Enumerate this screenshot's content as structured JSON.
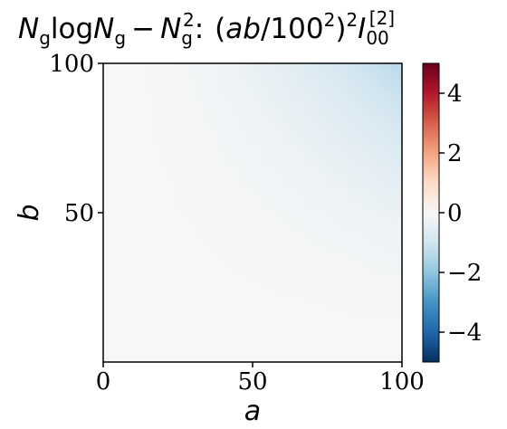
{
  "chart_data": {
    "type": "heatmap",
    "title_parts": {
      "lhs_main": "N",
      "lhs_sub1": "g",
      "log": "log",
      "lhs_main2": "N",
      "lhs_sub2": "g",
      "minus": "−",
      "lhs_main3": "N",
      "lhs_sub3": "g",
      "lhs_sup3": "2",
      "colon": ":",
      "rhs_open": "(",
      "rhs_ab": "ab",
      "rhs_slash": "/100",
      "rhs_sup_inner": "2",
      "rhs_close": ")",
      "rhs_sup_outer": "2",
      "rhs_I": "I",
      "rhs_sub": "00",
      "rhs_sup": "[2]"
    },
    "xlabel": "a",
    "ylabel": "b",
    "xlim": [
      0,
      100
    ],
    "ylim": [
      0,
      100
    ],
    "xticks": [
      "0",
      "50",
      "100"
    ],
    "yticks": [
      "50",
      "100"
    ],
    "colorbar": {
      "range": [
        -5,
        5
      ],
      "colormap": "RdBu_r",
      "ticks": [
        "4",
        "2",
        "0",
        "−2",
        "−4"
      ],
      "tick_values": [
        4,
        2,
        0,
        -2,
        -4
      ]
    },
    "field": {
      "formula": "value = -1.4 * ((a*b)/100^2)^2",
      "description": "near 0 over most of the domain, decreasing toward about -1.4 at a=100, b=100"
    }
  }
}
